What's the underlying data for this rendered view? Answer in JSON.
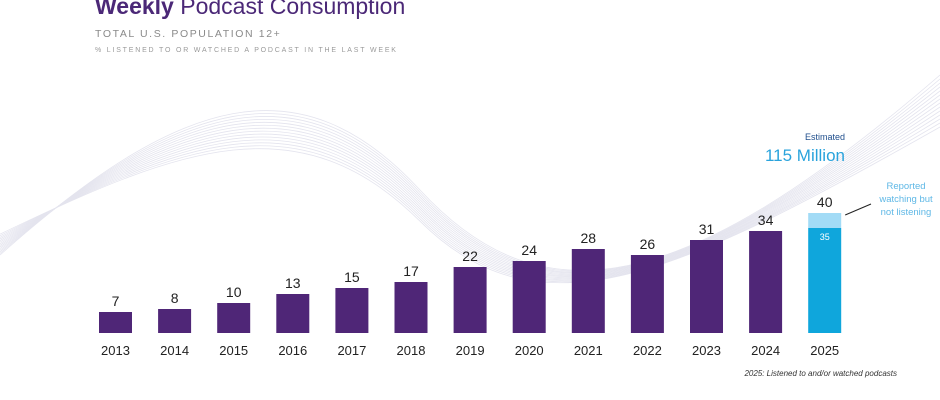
{
  "header": {
    "title_bold": "Weekly",
    "title_rest": " Podcast Consumption",
    "subtitle": "TOTAL U.S. POPULATION 12+",
    "note": "% LISTENED TO OR WATCHED A PODCAST IN THE LAST WEEK"
  },
  "estimate": {
    "label": "Estimated",
    "value": "115 Million"
  },
  "callout": "Reported watching but not listening",
  "footnote": "2025: Listened to and/or watched podcasts",
  "colors": {
    "bar": "#4f2677",
    "bar_2025": "#0fa6dc",
    "bar_2025_watch": "#a2dbf6",
    "title": "#4b2877"
  },
  "chart_data": {
    "type": "bar",
    "categories": [
      "2013",
      "2014",
      "2015",
      "2016",
      "2017",
      "2018",
      "2019",
      "2020",
      "2021",
      "2022",
      "2023",
      "2024",
      "2025"
    ],
    "values": [
      7,
      8,
      10,
      13,
      15,
      17,
      22,
      24,
      28,
      26,
      31,
      34,
      40
    ],
    "value_labels": [
      "7",
      "8",
      "10",
      "13",
      "15",
      "17",
      "22",
      "24",
      "28",
      "26",
      "31",
      "34",
      "40"
    ],
    "stacked_2025": {
      "listened": 35,
      "watching_only": 5,
      "inner_label": "35"
    },
    "title": "Weekly Podcast Consumption",
    "ylim": [
      0,
      40
    ],
    "grid": false,
    "legend": "none"
  }
}
